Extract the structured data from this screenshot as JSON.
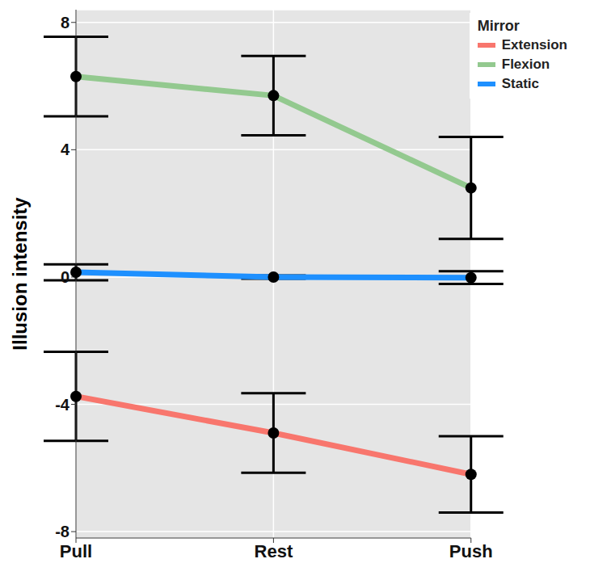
{
  "chart_data": {
    "type": "line",
    "categories": [
      "Pull",
      "Rest",
      "Push"
    ],
    "y_label": "Illusion intensity",
    "ylim": [
      -8.2,
      8.4
    ],
    "yticks": [
      -8,
      -4,
      0,
      4,
      8
    ],
    "grid": true,
    "legend": "top-right",
    "legend_title": "Mirror",
    "marker": "circle",
    "series": [
      {
        "name": "Extension",
        "color": "#F8766D",
        "values": [
          -3.75,
          -4.9,
          -6.2
        ],
        "errors": [
          1.4,
          1.25,
          1.2
        ]
      },
      {
        "name": "Flexion",
        "color": "#93C98F",
        "values": [
          6.3,
          5.7,
          2.8
        ],
        "errors": [
          1.25,
          1.25,
          1.6
        ]
      },
      {
        "name": "Static",
        "color": "#1E90FF",
        "values": [
          0.15,
          0.0,
          -0.02
        ],
        "errors": [
          0.25,
          0.05,
          0.2
        ]
      }
    ]
  }
}
